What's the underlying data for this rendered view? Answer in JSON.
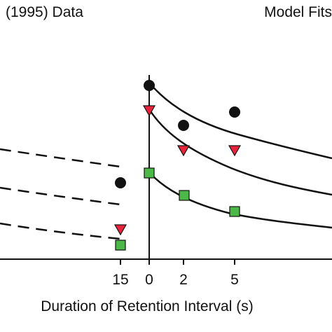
{
  "chart_data": {
    "type": "scatter",
    "left_panel": {
      "title": "(1995) Data",
      "x_ticks": [
        "15"
      ],
      "dashed_curves": 3,
      "points": [
        {
          "x": 15,
          "marker": "circle",
          "y": 0.6
        },
        {
          "x": 15,
          "marker": "triangle",
          "y": 0.38
        },
        {
          "x": 15,
          "marker": "square",
          "y": 0.27
        }
      ]
    },
    "right_panel": {
      "title": "Model Fits",
      "x_ticks": [
        "0",
        "2",
        "5"
      ],
      "series": [
        {
          "marker": "circle",
          "color": "#111111",
          "x": [
            0,
            2,
            5
          ],
          "y": [
            1.16,
            0.93,
            1.0
          ]
        },
        {
          "marker": "triangle",
          "color": "#e8243c",
          "x": [
            0,
            2,
            5
          ],
          "y": [
            0.99,
            0.78,
            0.78
          ]
        },
        {
          "marker": "square",
          "color": "#4cb848",
          "x": [
            0,
            2,
            5
          ],
          "y": [
            0.71,
            0.54,
            0.43
          ]
        }
      ]
    },
    "xlabel": "Duration of Retention Interval (s)"
  }
}
